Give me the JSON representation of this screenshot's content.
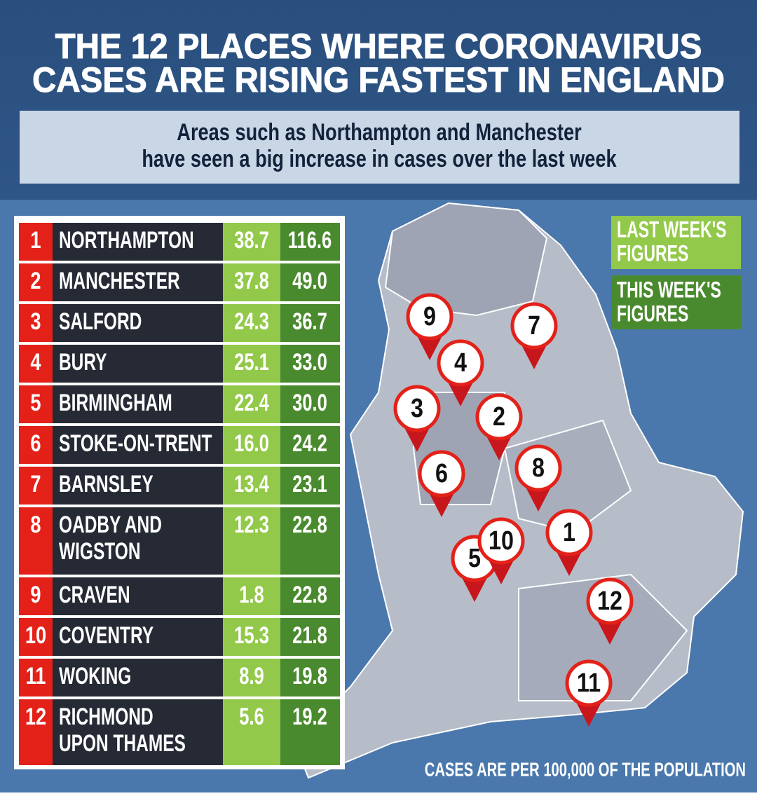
{
  "header": {
    "title": [
      "THE 12 PLACES WHERE CORONAVIRUS",
      "CASES ARE RISING FASTEST IN ENGLAND"
    ],
    "subtitle": [
      "Areas such as Northampton and Manchester",
      "have seen a big increase in cases over the last week"
    ]
  },
  "legend": {
    "last_week": [
      "LAST WEEK'S",
      "FIGURES"
    ],
    "this_week": [
      "THIS WEEK'S",
      "FIGURES"
    ]
  },
  "table": {
    "rows": [
      {
        "rank": "1",
        "name": [
          "NORTHAMPTON"
        ],
        "last_week": "38.7",
        "this_week": "116.6"
      },
      {
        "rank": "2",
        "name": [
          "MANCHESTER"
        ],
        "last_week": "37.8",
        "this_week": "49.0"
      },
      {
        "rank": "3",
        "name": [
          "SALFORD"
        ],
        "last_week": "24.3",
        "this_week": "36.7"
      },
      {
        "rank": "4",
        "name": [
          "BURY"
        ],
        "last_week": "25.1",
        "this_week": "33.0"
      },
      {
        "rank": "5",
        "name": [
          "BIRMINGHAM"
        ],
        "last_week": "22.4",
        "this_week": "30.0"
      },
      {
        "rank": "6",
        "name": [
          "STOKE-ON-TRENT"
        ],
        "last_week": "16.0",
        "this_week": "24.2"
      },
      {
        "rank": "7",
        "name": [
          "BARNSLEY"
        ],
        "last_week": "13.4",
        "this_week": "23.1"
      },
      {
        "rank": "8",
        "name": [
          "OADBY AND",
          "WIGSTON"
        ],
        "last_week": "12.3",
        "this_week": "22.8"
      },
      {
        "rank": "9",
        "name": [
          "CRAVEN"
        ],
        "last_week": "1.8",
        "this_week": "22.8"
      },
      {
        "rank": "10",
        "name": [
          "COVENTRY"
        ],
        "last_week": "15.3",
        "this_week": "21.8"
      },
      {
        "rank": "11",
        "name": [
          "WOKING"
        ],
        "last_week": "8.9",
        "this_week": "19.8"
      },
      {
        "rank": "12",
        "name": [
          "RICHMOND",
          "UPON THAMES"
        ],
        "last_week": "5.6",
        "this_week": "19.2"
      }
    ]
  },
  "footnote": "CASES ARE PER 100,000 OF THE POPULATION"
}
